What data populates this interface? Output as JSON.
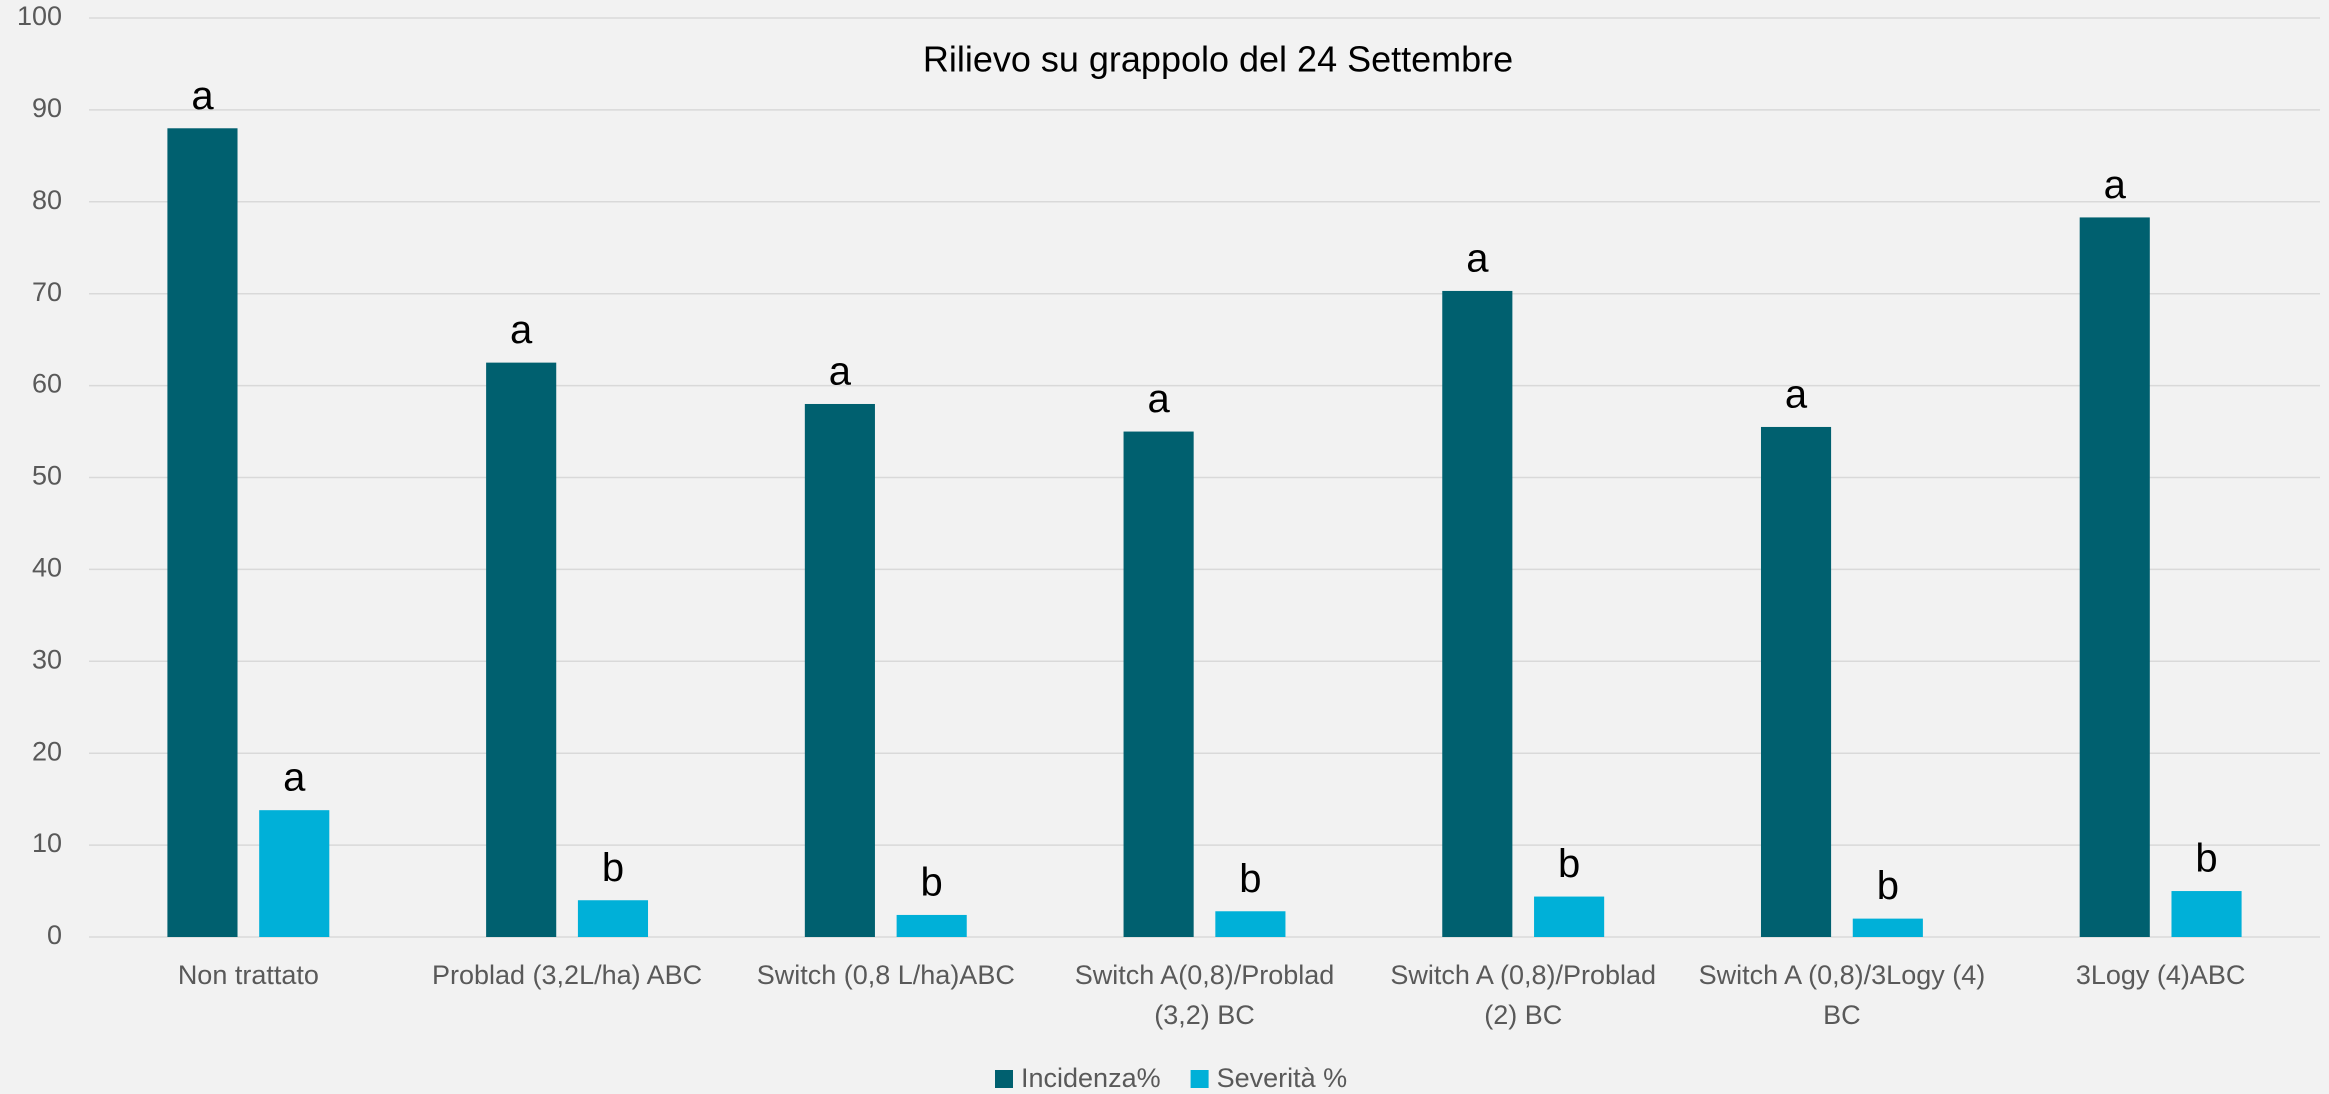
{
  "chart_data": {
    "type": "bar",
    "title": "Rilievo su grappolo del 24 Settembre",
    "categories": [
      "Non trattato",
      "Problad (3,2L/ha) ABC",
      "Switch (0,8 L/ha)ABC",
      "Switch A(0,8)/Problad (3,2) BC",
      "Switch A (0,8)/Problad (2) BC",
      "Switch A (0,8)/3Logy (4) BC",
      "3Logy (4)ABC"
    ],
    "series": [
      {
        "name": "Incidenza%",
        "color": "#00606f",
        "values": [
          88,
          62.5,
          58,
          55,
          70.3,
          55.5,
          78.3
        ],
        "annotations": [
          "a",
          "a",
          "a",
          "a",
          "a",
          "a",
          "a"
        ]
      },
      {
        "name": "Severità %",
        "color": "#00b0d8",
        "values": [
          13.8,
          4,
          2.4,
          2.8,
          4.4,
          2,
          5
        ],
        "annotations": [
          "a",
          "b",
          "b",
          "b",
          "b",
          "b",
          "b"
        ]
      }
    ],
    "ylim": [
      0,
      100
    ],
    "yticks": [
      0,
      10,
      20,
      30,
      40,
      50,
      60,
      70,
      80,
      90,
      100
    ],
    "grid": true,
    "legend": "bottom"
  }
}
